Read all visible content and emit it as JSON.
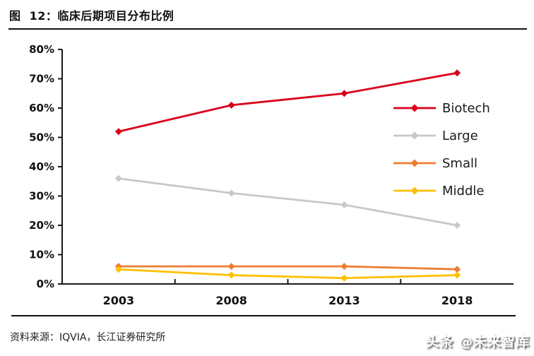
{
  "page": {
    "title": "图  12：临床后期项目分布比例",
    "source_label": "资料来源：IQVIA，长江证券研究所",
    "watermark": "头条 @未来智库"
  },
  "chart_data": {
    "type": "line",
    "title": "临床后期项目分布比例",
    "categories": [
      "2003",
      "2008",
      "2013",
      "2018"
    ],
    "series": [
      {
        "name": "Biotech",
        "color": "#D9001B",
        "values": [
          52,
          61,
          65,
          72
        ]
      },
      {
        "name": "Large",
        "color": "#C8C8C8",
        "values": [
          36,
          31,
          27,
          20
        ]
      },
      {
        "name": "Small",
        "color": "#ED7D31",
        "values": [
          6,
          6,
          6,
          5
        ]
      },
      {
        "name": "Middle",
        "color": "#FFC000",
        "values": [
          5,
          3,
          2,
          3
        ]
      }
    ],
    "xlabel": "",
    "ylabel": "",
    "ylim": [
      0,
      80
    ],
    "y_tick_step": 10,
    "y_tick_labels": [
      "0%",
      "10%",
      "20%",
      "30%",
      "40%",
      "50%",
      "60%",
      "70%",
      "80%"
    ],
    "grid": false,
    "marker": "diamond",
    "legend_position": "right",
    "axis_color": "#1a1a1a"
  }
}
